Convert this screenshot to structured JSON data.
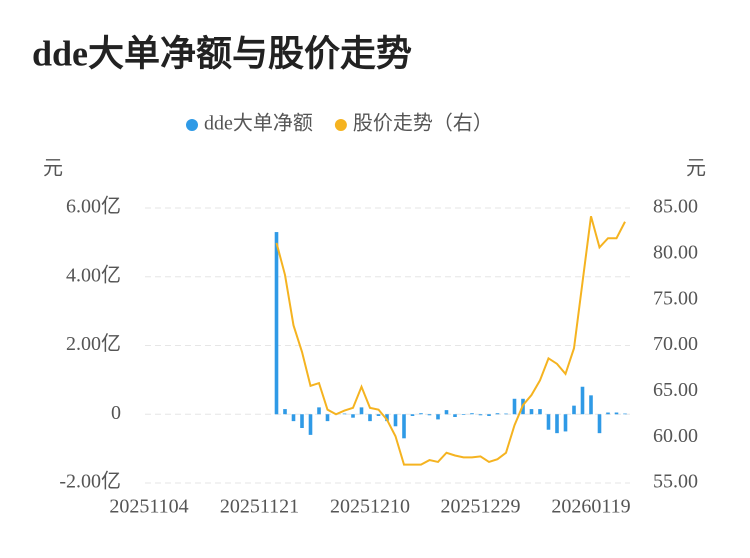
{
  "chart_data": {
    "type": "combo",
    "title": "dde大单净额与股价走势",
    "y_unit": "元",
    "y2_unit": "元",
    "categories": [
      "20251104",
      null,
      null,
      null,
      null,
      null,
      null,
      null,
      null,
      null,
      null,
      null,
      null,
      "20251121",
      null,
      null,
      null,
      null,
      null,
      null,
      null,
      null,
      null,
      null,
      null,
      null,
      "20251210",
      null,
      null,
      null,
      null,
      null,
      null,
      null,
      null,
      null,
      null,
      null,
      null,
      "20251229",
      null,
      null,
      null,
      null,
      null,
      null,
      null,
      null,
      null,
      null,
      null,
      null,
      "20260119",
      null,
      null,
      null,
      null
    ],
    "series": [
      {
        "name": "dde大单净额",
        "type": "bar",
        "color": "#2f9ae6",
        "values": [
          null,
          null,
          null,
          null,
          null,
          null,
          null,
          null,
          null,
          null,
          null,
          null,
          null,
          null,
          null,
          5.3,
          0.15,
          -0.2,
          -0.4,
          -0.6,
          0.2,
          -0.2,
          0.01,
          0.02,
          -0.1,
          0.2,
          -0.2,
          -0.05,
          -0.2,
          -0.35,
          -0.7,
          -0.05,
          0.03,
          -0.03,
          -0.15,
          0.12,
          -0.08,
          -0.02,
          0.03,
          -0.03,
          -0.05,
          0.03,
          0.02,
          0.45,
          0.45,
          0.15,
          0.15,
          -0.45,
          -0.55,
          -0.5,
          0.25,
          0.8,
          0.55,
          -0.55,
          0.05,
          0.05,
          0.02
        ]
      },
      {
        "name": "股价走势（右）",
        "type": "line",
        "axis": "y2",
        "color": "#f5b320",
        "values": [
          null,
          null,
          null,
          null,
          null,
          null,
          null,
          null,
          null,
          null,
          null,
          null,
          null,
          null,
          null,
          81.2,
          77.7,
          72.2,
          69.3,
          65.6,
          65.9,
          63.0,
          62.5,
          62.9,
          63.2,
          65.5,
          63.2,
          63.0,
          61.9,
          60.1,
          57.0,
          57.0,
          57.0,
          57.5,
          57.3,
          58.3,
          58.0,
          57.8,
          57.8,
          57.9,
          57.3,
          57.6,
          58.3,
          61.3,
          63.5,
          64.6,
          66.2,
          68.6,
          68.0,
          66.9,
          69.7,
          76.9,
          84.1,
          80.7,
          81.7,
          81.7,
          83.5
        ]
      }
    ],
    "ylim": [
      -2,
      6
    ],
    "yticks": [
      {
        "value": -2,
        "label": "-2.00亿"
      },
      0,
      {
        "value": 2,
        "label": "2.00亿"
      },
      {
        "value": 4,
        "label": "4.00亿"
      },
      {
        "value": 6,
        "label": "6.00亿"
      }
    ],
    "y2lim": [
      55,
      85
    ],
    "y2ticks": [
      {
        "value": 55,
        "label": "55.00"
      },
      {
        "value": 60,
        "label": "60.00"
      },
      {
        "value": 65,
        "label": "65.00"
      },
      {
        "value": 70,
        "label": "70.00"
      },
      {
        "value": 75,
        "label": "75.00"
      },
      {
        "value": 80,
        "label": "80.00"
      },
      {
        "value": 85,
        "label": "85.00"
      }
    ],
    "grid": true,
    "legend": "top"
  }
}
